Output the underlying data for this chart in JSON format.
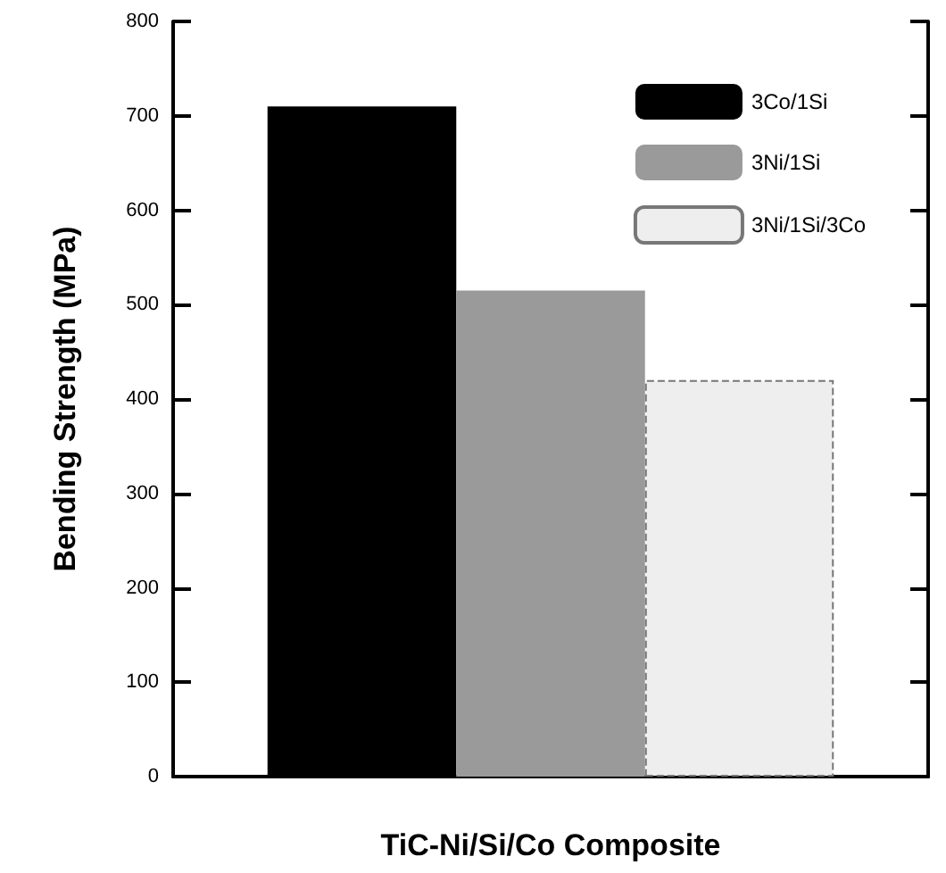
{
  "chart_data": {
    "type": "bar",
    "xlabel": "TiC-Ni/Si/Co Composite",
    "ylabel": "Bending Strength (MPa)",
    "categories": [
      null
    ],
    "series": [
      {
        "name": "3Co/1Si",
        "color": "#000000",
        "values": [
          710
        ]
      },
      {
        "name": "3Ni/1Si",
        "color": "#9a9a9a",
        "values": [
          515
        ]
      },
      {
        "name": "3Ni/1Si/3Co",
        "color": "#eeeeee",
        "values": [
          420
        ]
      }
    ],
    "ylim": [
      0,
      800
    ],
    "yticks": [
      0,
      100,
      200,
      300,
      400,
      500,
      600,
      700,
      800
    ],
    "grid": false,
    "legend": "top right"
  }
}
